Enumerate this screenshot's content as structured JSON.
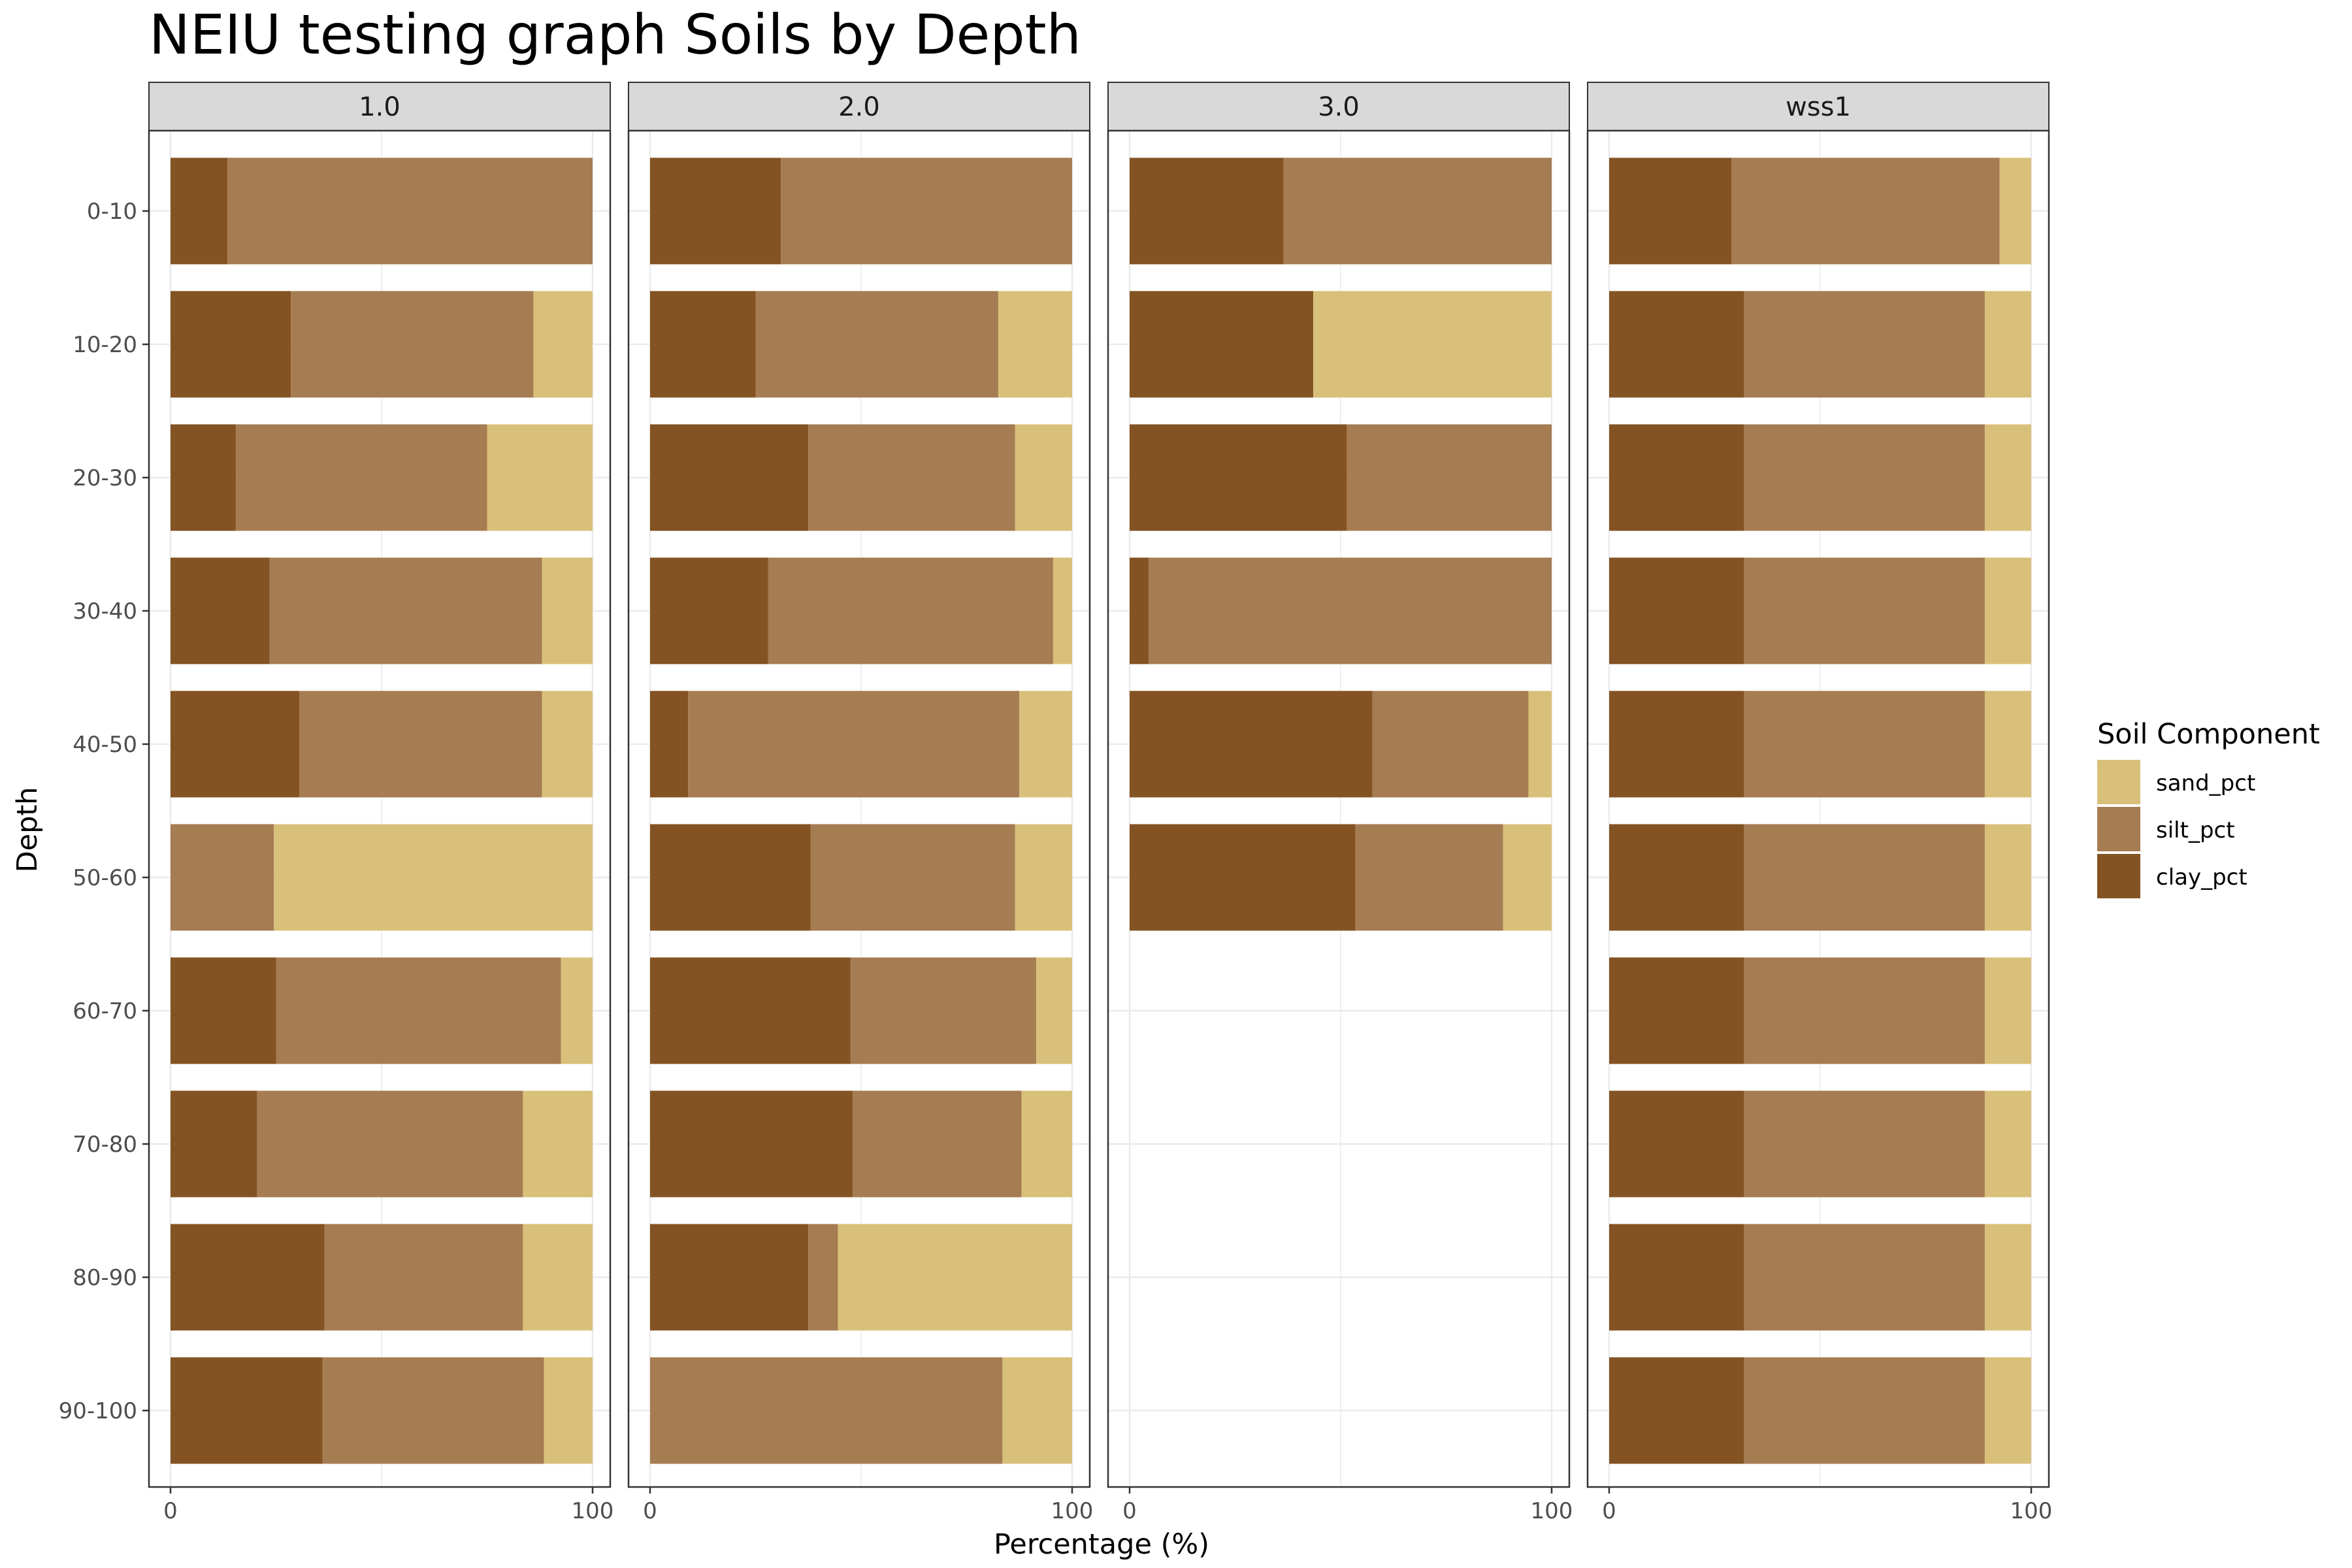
{
  "chart_data": {
    "type": "bar",
    "orientation": "horizontal",
    "stacked": true,
    "title": "NEIU testing graph Soils by Depth",
    "xlabel": "Percentage (%)",
    "ylabel": "Depth",
    "xlim": [
      0,
      100
    ],
    "x_ticks": [
      "0",
      "100"
    ],
    "grid": true,
    "categories": [
      "0-10",
      "10-20",
      "20-30",
      "30-40",
      "40-50",
      "50-60",
      "60-70",
      "70-80",
      "80-90",
      "90-100"
    ],
    "legend": {
      "title": "Soil Component",
      "placement": "right",
      "entries": [
        "sand_pct",
        "silt_pct",
        "clay_pct"
      ]
    },
    "colors": {
      "sand_pct": "#D9C07A",
      "silt_pct": "#A67C52",
      "clay_pct": "#845323",
      "strip_bg": "#D9D9D9",
      "grid": "#EBEBEB",
      "border": "#333333"
    },
    "stack_order": [
      "clay_pct",
      "silt_pct",
      "sand_pct"
    ],
    "panels": [
      {
        "label": "1.0",
        "rows": [
          {
            "depth": "0-10",
            "clay_pct": 13.5,
            "silt_pct": 86.5,
            "sand_pct": 0
          },
          {
            "depth": "10-20",
            "clay_pct": 28.5,
            "silt_pct": 57.5,
            "sand_pct": 14
          },
          {
            "depth": "20-30",
            "clay_pct": 15.5,
            "silt_pct": 59.5,
            "sand_pct": 25
          },
          {
            "depth": "30-40",
            "clay_pct": 23.5,
            "silt_pct": 64.5,
            "sand_pct": 12
          },
          {
            "depth": "40-50",
            "clay_pct": 30.5,
            "silt_pct": 57.5,
            "sand_pct": 12
          },
          {
            "depth": "50-60",
            "clay_pct": 0,
            "silt_pct": 24.5,
            "sand_pct": 75.5
          },
          {
            "depth": "60-70",
            "clay_pct": 25,
            "silt_pct": 67.5,
            "sand_pct": 7.5
          },
          {
            "depth": "70-80",
            "clay_pct": 20.5,
            "silt_pct": 63,
            "sand_pct": 16.5
          },
          {
            "depth": "80-90",
            "clay_pct": 36.5,
            "silt_pct": 47,
            "sand_pct": 16.5
          },
          {
            "depth": "90-100",
            "clay_pct": 36,
            "silt_pct": 52.5,
            "sand_pct": 11.5
          }
        ]
      },
      {
        "label": "2.0",
        "rows": [
          {
            "depth": "0-10",
            "clay_pct": 31,
            "silt_pct": 69,
            "sand_pct": 0
          },
          {
            "depth": "10-20",
            "clay_pct": 25,
            "silt_pct": 57.5,
            "sand_pct": 17.5
          },
          {
            "depth": "20-30",
            "clay_pct": 37.5,
            "silt_pct": 49,
            "sand_pct": 13.5
          },
          {
            "depth": "30-40",
            "clay_pct": 28,
            "silt_pct": 67.5,
            "sand_pct": 4.5
          },
          {
            "depth": "40-50",
            "clay_pct": 9,
            "silt_pct": 78.5,
            "sand_pct": 12.5
          },
          {
            "depth": "50-60",
            "clay_pct": 38,
            "silt_pct": 48.5,
            "sand_pct": 13.5
          },
          {
            "depth": "60-70",
            "clay_pct": 47.5,
            "silt_pct": 44,
            "sand_pct": 8.5
          },
          {
            "depth": "70-80",
            "clay_pct": 48,
            "silt_pct": 40,
            "sand_pct": 12
          },
          {
            "depth": "80-90",
            "clay_pct": 37.5,
            "silt_pct": 7,
            "sand_pct": 55.5
          },
          {
            "depth": "90-100",
            "clay_pct": 0,
            "silt_pct": 83.5,
            "sand_pct": 16.5
          }
        ]
      },
      {
        "label": "3.0",
        "rows": [
          {
            "depth": "0-10",
            "clay_pct": 36.5,
            "silt_pct": 63.5,
            "sand_pct": 0
          },
          {
            "depth": "10-20",
            "clay_pct": 43.5,
            "silt_pct": 0,
            "sand_pct": 56.5
          },
          {
            "depth": "20-30",
            "clay_pct": 51.5,
            "silt_pct": 48.5,
            "sand_pct": 0
          },
          {
            "depth": "30-40",
            "clay_pct": 4.5,
            "silt_pct": 95.5,
            "sand_pct": 0
          },
          {
            "depth": "40-50",
            "clay_pct": 57.5,
            "silt_pct": 37,
            "sand_pct": 5.5
          },
          {
            "depth": "50-60",
            "clay_pct": 53.5,
            "silt_pct": 35,
            "sand_pct": 11.5
          }
        ]
      },
      {
        "label": "wss1",
        "rows": [
          {
            "depth": "0-10",
            "clay_pct": 29,
            "silt_pct": 63.5,
            "sand_pct": 7.5
          },
          {
            "depth": "10-20",
            "clay_pct": 32,
            "silt_pct": 57,
            "sand_pct": 11
          },
          {
            "depth": "20-30",
            "clay_pct": 32,
            "silt_pct": 57,
            "sand_pct": 11
          },
          {
            "depth": "30-40",
            "clay_pct": 32,
            "silt_pct": 57,
            "sand_pct": 11
          },
          {
            "depth": "40-50",
            "clay_pct": 32,
            "silt_pct": 57,
            "sand_pct": 11
          },
          {
            "depth": "50-60",
            "clay_pct": 32,
            "silt_pct": 57,
            "sand_pct": 11
          },
          {
            "depth": "60-70",
            "clay_pct": 32,
            "silt_pct": 57,
            "sand_pct": 11
          },
          {
            "depth": "70-80",
            "clay_pct": 32,
            "silt_pct": 57,
            "sand_pct": 11
          },
          {
            "depth": "80-90",
            "clay_pct": 32,
            "silt_pct": 57,
            "sand_pct": 11
          },
          {
            "depth": "90-100",
            "clay_pct": 32,
            "silt_pct": 57,
            "sand_pct": 11
          }
        ]
      }
    ]
  }
}
